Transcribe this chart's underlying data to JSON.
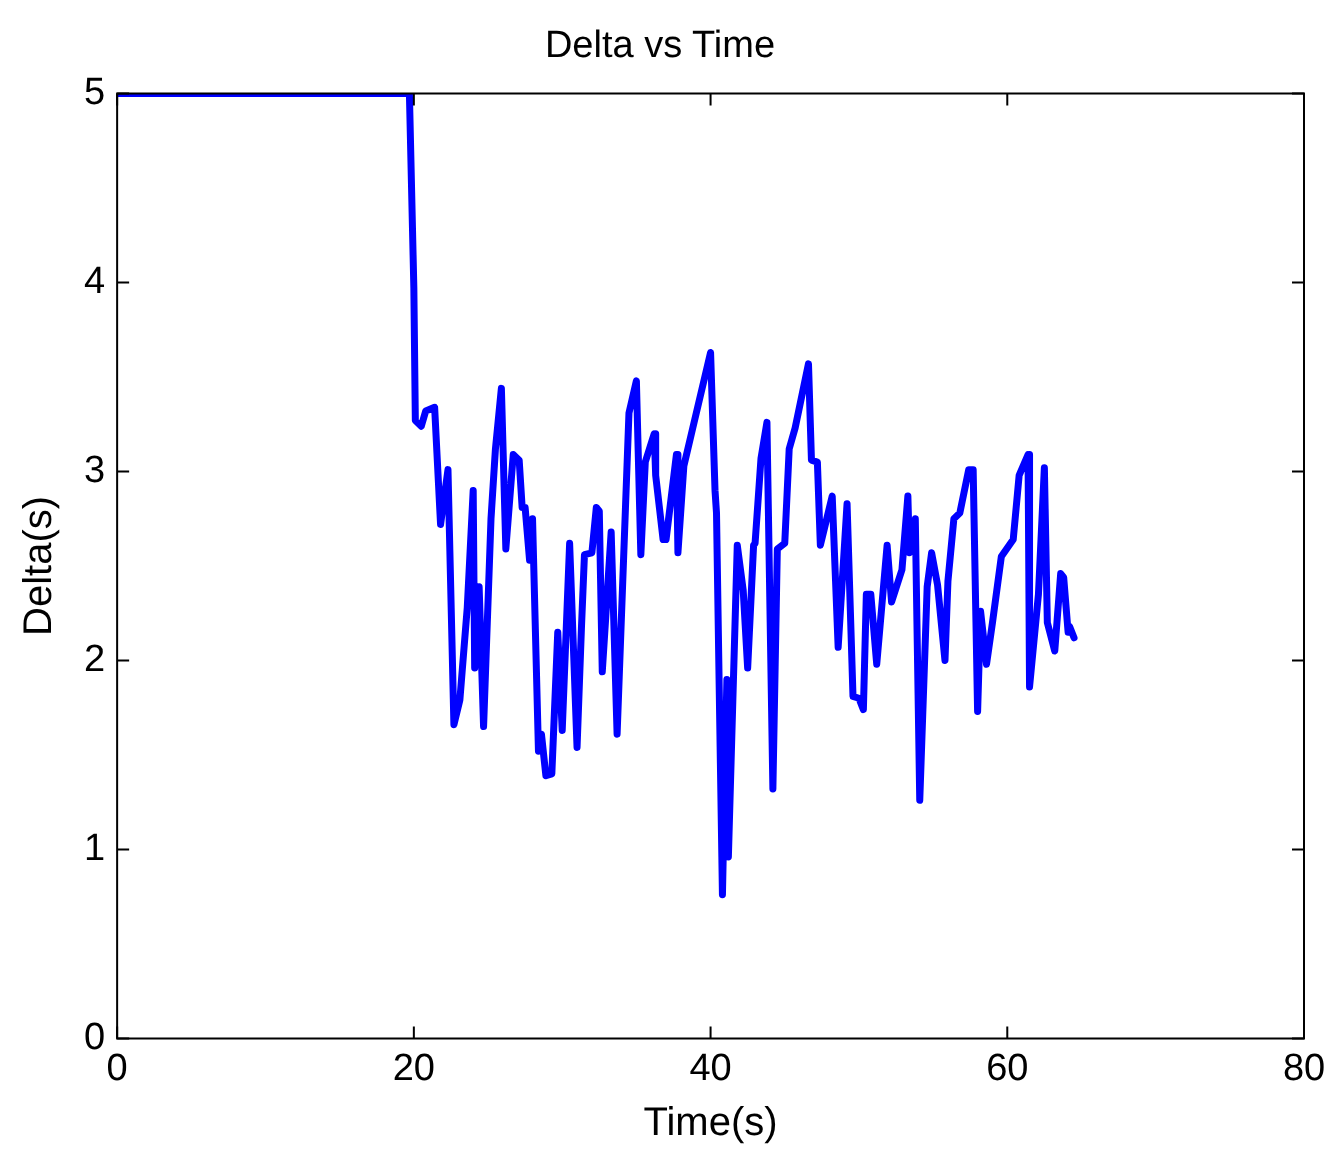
{
  "chart_data": {
    "type": "line",
    "title": "Delta vs Time",
    "xlabel": "Time(s)",
    "ylabel": "Delta(s)",
    "xlim": [
      0,
      80
    ],
    "xticks": [
      0,
      20,
      40,
      60,
      80
    ],
    "ylim": [
      0,
      5
    ],
    "yticks": [
      0,
      1,
      2,
      3,
      4,
      5
    ],
    "grid": false,
    "legend": false,
    "marker": "none",
    "line_style": "solid",
    "series": [
      {
        "color": "#0000ff",
        "x": [
          0,
          19.7,
          20.0,
          20.1,
          20.5,
          20.8,
          21.4,
          21.8,
          22.3,
          22.7,
          23.1,
          23.6,
          24.0,
          24.1,
          24.4,
          24.7,
          25.2,
          25.5,
          25.9,
          26.2,
          26.7,
          27.1,
          27.3,
          27.5,
          27.8,
          28.0,
          28.4,
          28.6,
          28.9,
          29.3,
          29.7,
          30.0,
          30.5,
          31.0,
          31.3,
          31.5,
          32.0,
          32.3,
          32.5,
          32.7,
          33.3,
          33.7,
          34.5,
          35.0,
          35.3,
          35.6,
          36.2,
          36.3,
          36.8,
          37.0,
          37.7,
          37.8,
          38.2,
          38.8,
          40.0,
          40.3,
          40.4,
          40.8,
          41.1,
          41.2,
          41.8,
          42.2,
          42.5,
          42.9,
          43.0,
          43.4,
          43.8,
          44.2,
          44.5,
          45.0,
          45.3,
          45.7,
          46.6,
          46.8,
          47.2,
          47.4,
          48.2,
          48.6,
          49.2,
          49.6,
          50.0,
          50.3,
          50.5,
          50.8,
          51.2,
          51.9,
          52.2,
          52.9,
          53.3,
          53.4,
          53.8,
          54.1,
          54.6,
          54.9,
          55.3,
          55.8,
          56.0,
          56.4,
          56.8,
          57.4,
          57.7,
          58.0,
          58.2,
          58.6,
          59.0,
          59.6,
          60.4,
          60.8,
          61.4,
          61.5,
          62.1,
          62.5,
          62.7,
          63.2,
          63.6,
          63.8,
          64.1,
          64.2,
          64.5
        ],
        "values": [
          5,
          5,
          3.97,
          3.27,
          3.24,
          3.32,
          3.34,
          2.72,
          3.01,
          1.66,
          1.79,
          2.28,
          2.9,
          1.96,
          2.39,
          1.65,
          2.75,
          3.12,
          3.44,
          2.59,
          3.09,
          3.06,
          2.81,
          2.81,
          2.53,
          2.75,
          1.52,
          1.61,
          1.39,
          1.4,
          2.15,
          1.63,
          2.62,
          1.54,
          2.18,
          2.56,
          2.57,
          2.81,
          2.79,
          1.94,
          2.68,
          1.61,
          3.31,
          3.48,
          2.56,
          3.05,
          3.2,
          2.98,
          2.64,
          2.64,
          3.09,
          2.57,
          3.03,
          3.23,
          3.63,
          2.9,
          2.78,
          0.76,
          1.9,
          0.96,
          2.61,
          2.37,
          1.96,
          2.61,
          2.62,
          3.07,
          3.26,
          1.32,
          2.59,
          2.62,
          3.12,
          3.23,
          3.57,
          3.06,
          3.05,
          2.61,
          2.87,
          2.07,
          2.83,
          1.81,
          1.8,
          1.74,
          2.35,
          2.35,
          1.98,
          2.61,
          2.31,
          2.48,
          2.87,
          2.57,
          2.75,
          1.26,
          2.39,
          2.57,
          2.4,
          2,
          2.42,
          2.75,
          2.78,
          3.01,
          3.01,
          1.73,
          2.26,
          1.98,
          2.2,
          2.55,
          2.64,
          2.98,
          3.09,
          1.86,
          2.35,
          3.02,
          2.2,
          2.05,
          2.46,
          2.44,
          2.15,
          2.18,
          2.12
        ]
      }
    ]
  }
}
